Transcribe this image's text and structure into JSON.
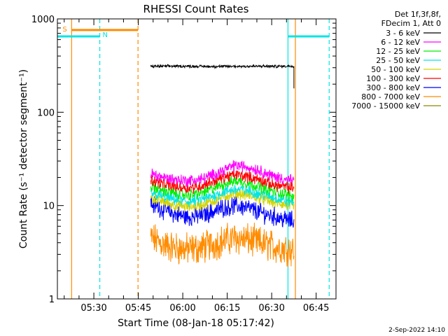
{
  "chart_data": {
    "type": "line",
    "title": "RHESSI Count Rates",
    "xlabel": "Start Time (08-Jan-18 05:17:42)",
    "ylabel": "Count Rate (s⁻¹ detector segment⁻¹)",
    "y_scale": "log",
    "ylim": [
      1,
      1000
    ],
    "x_unit": "minutes after 05:17:42",
    "xlim": [
      0,
      94
    ],
    "x_ticks": [
      {
        "label": "05:30",
        "value": 12.3
      },
      {
        "label": "05:45",
        "value": 27.3
      },
      {
        "label": "06:00",
        "value": 42.3
      },
      {
        "label": "06:15",
        "value": 57.3
      },
      {
        "label": "06:30",
        "value": 72.3
      },
      {
        "label": "06:45",
        "value": 87.3
      }
    ],
    "y_ticks": [
      {
        "label": "1",
        "value": 1
      },
      {
        "label": "10",
        "value": 10
      },
      {
        "label": "100",
        "value": 100
      },
      {
        "label": "1000",
        "value": 1000
      }
    ],
    "legend_header": [
      "Det 1f,3f,8f,",
      "FDecim 1, Att 0"
    ],
    "legend_position": "outside-right",
    "date_stamp": "2-Sep-2022 14:10",
    "series": [
      {
        "name": "3 - 6 keV",
        "color": "#000000",
        "x": [
          31.5,
          38,
          45,
          52,
          59,
          66,
          73,
          79.8
        ],
        "values": [
          310,
          312,
          311,
          309,
          310,
          311,
          310,
          312
        ]
      },
      {
        "name": "6 - 12 keV",
        "color": "#ff00ff",
        "x": [
          31.5,
          36,
          40,
          44,
          48,
          52,
          56,
          60,
          64,
          68,
          72,
          76,
          79.8
        ],
        "values": [
          22,
          20,
          19,
          18.5,
          19,
          21,
          24,
          27,
          26,
          24,
          21,
          19.5,
          18.5
        ]
      },
      {
        "name": "12 - 25 keV",
        "color": "#00ee00",
        "x": [
          31.5,
          36,
          40,
          44,
          48,
          52,
          56,
          60,
          64,
          68,
          72,
          76,
          79.8
        ],
        "values": [
          16,
          14.5,
          13.5,
          13,
          13.5,
          15,
          17,
          18.5,
          17.5,
          16,
          14.5,
          13.5,
          12.5
        ]
      },
      {
        "name": "25 - 50 keV",
        "color": "#00e5e5",
        "x": [
          31.5,
          36,
          40,
          44,
          48,
          52,
          56,
          60,
          64,
          68,
          72,
          76,
          79.8
        ],
        "values": [
          13.5,
          12.5,
          11.5,
          11,
          11.5,
          12.5,
          14,
          15,
          14.5,
          13.5,
          12.5,
          11.5,
          11
        ]
      },
      {
        "name": "50 - 100 keV",
        "color": "#d4d400",
        "x": [
          31.5,
          36,
          40,
          44,
          48,
          52,
          56,
          60,
          64,
          68,
          72,
          76,
          79.8
        ],
        "values": [
          12,
          11,
          10,
          9.7,
          10,
          11,
          12.5,
          13.5,
          13,
          12,
          11,
          10.3,
          9.7
        ]
      },
      {
        "name": "100 - 300 keV",
        "color": "#ff0000",
        "x": [
          31.5,
          36,
          40,
          44,
          48,
          52,
          56,
          60,
          64,
          68,
          72,
          76,
          79.8
        ],
        "values": [
          19,
          17,
          16,
          15.5,
          16,
          18,
          20,
          21.5,
          20.5,
          19,
          17,
          16,
          15.5
        ]
      },
      {
        "name": "300 - 800 keV",
        "color": "#0000ff",
        "x": [
          31.5,
          36,
          40,
          44,
          48,
          52,
          56,
          60,
          64,
          68,
          72,
          76,
          79.8
        ],
        "values": [
          10.5,
          9,
          8,
          7.5,
          7.8,
          8.5,
          9.5,
          10,
          9.5,
          8.5,
          7.8,
          7.2,
          6.8
        ]
      },
      {
        "name": "800 - 7000 keV",
        "color": "#ff8c00",
        "x": [
          31.5,
          36,
          40,
          44,
          48,
          52,
          56,
          60,
          64,
          68,
          72,
          76,
          79.8
        ],
        "values": [
          4.5,
          3.8,
          3.5,
          3.4,
          3.5,
          3.8,
          4.2,
          4.5,
          4.3,
          4,
          3.7,
          3.5,
          3.4
        ]
      },
      {
        "name": "7000 - 15000 keV",
        "color": "#8b8b00",
        "x": [],
        "values": []
      }
    ],
    "attenuator_markers": [
      {
        "label": "S",
        "color": "#ff8c00",
        "style": "solid",
        "x": 4.8,
        "level": 760,
        "bar_end_x": 27.2
      },
      {
        "label": "",
        "color": "#ff8c00",
        "style": "dashed",
        "x": 27.2
      },
      {
        "label": "",
        "color": "#ff8c00",
        "style": "solid",
        "x": 80.3
      }
    ],
    "night_markers": [
      {
        "label": "N",
        "color": "#00e5e5",
        "style": "dashed",
        "x": 14.3,
        "level": 650,
        "bar_start_x": 0
      },
      {
        "label": "",
        "color": "#00e5e5",
        "style": "solid",
        "x": 77.8,
        "level": 650,
        "bar_end_x": 91.7
      },
      {
        "label": "",
        "color": "#00e5e5",
        "style": "dashed",
        "x": 91.7
      }
    ]
  }
}
